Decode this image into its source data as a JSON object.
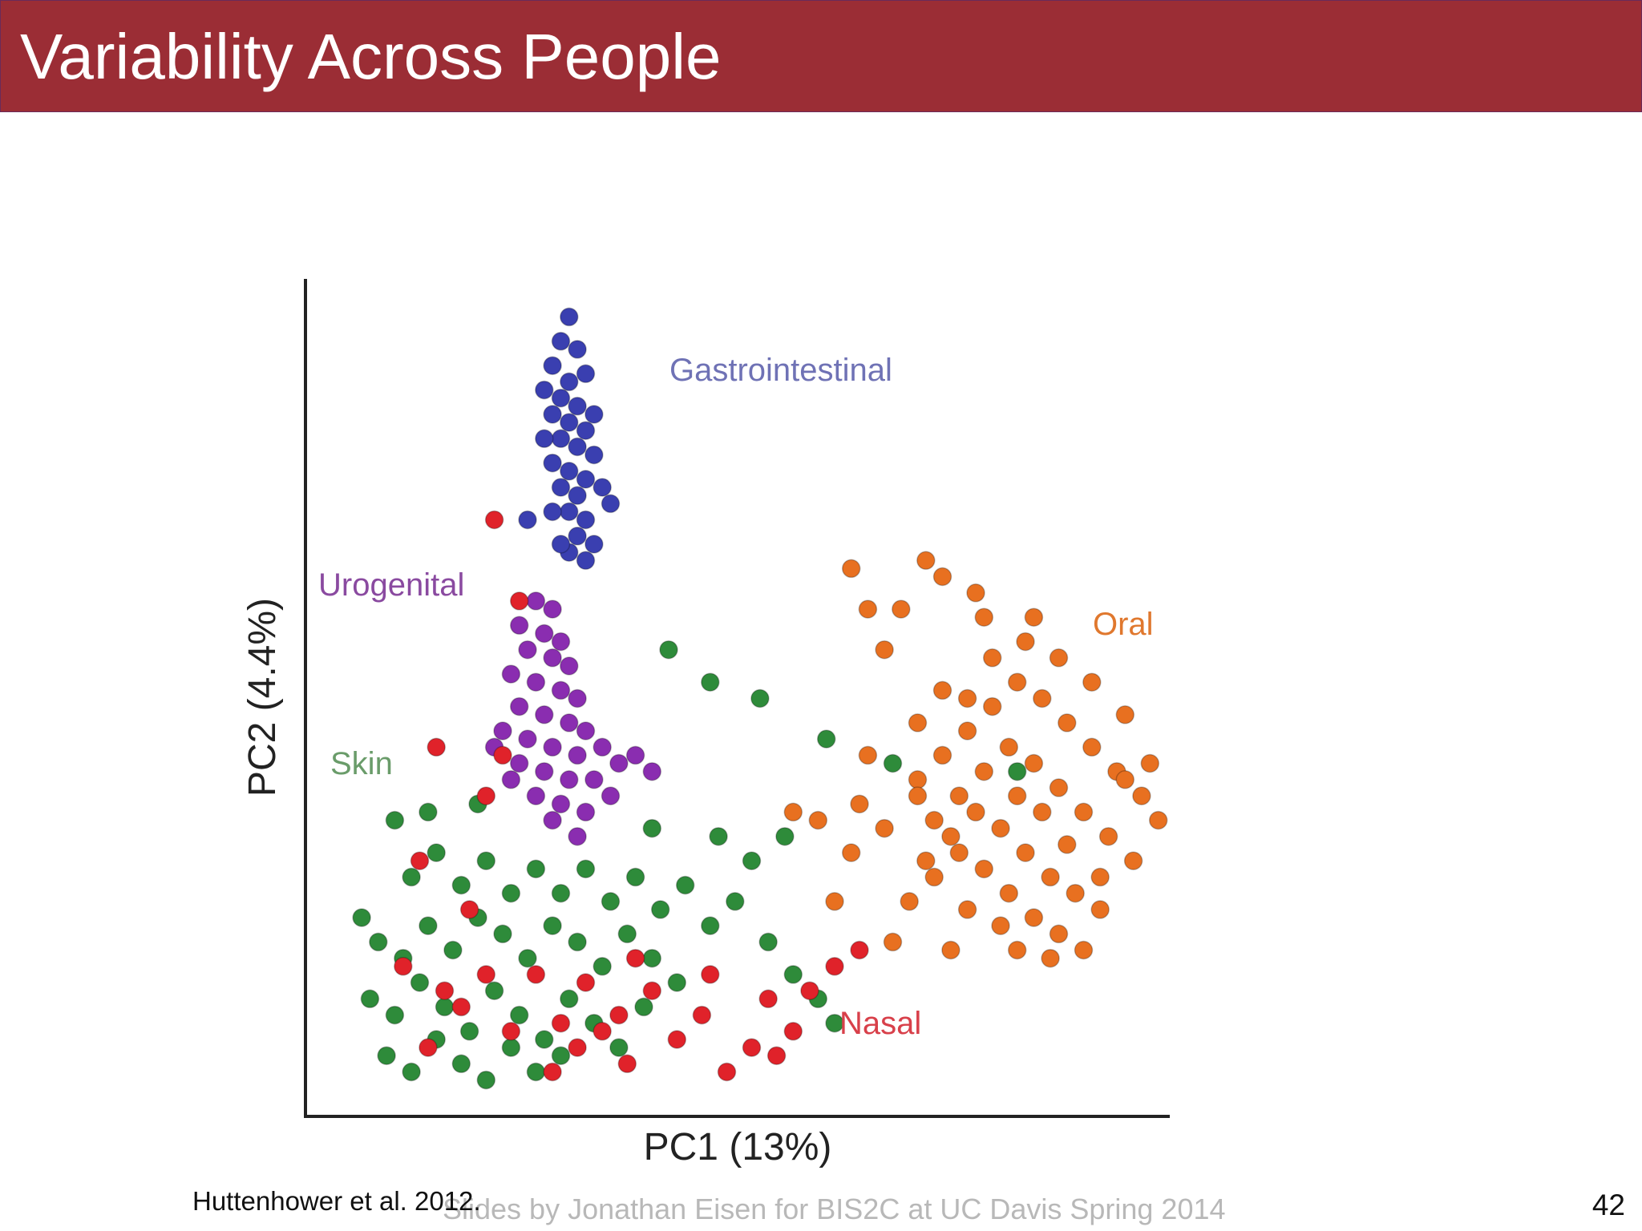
{
  "slide": {
    "title": "Variability Across People",
    "citation": "Huttenhower et al. 2012.",
    "credit": "Slides by Jonathan Eisen for BIS2C at UC Davis Spring 2014",
    "page_number": "42",
    "accent_color": "#9b2d35"
  },
  "chart_data": {
    "type": "scatter",
    "xlabel": "PC1 (13%)",
    "ylabel": "PC2 (4.4%)",
    "grid": false,
    "legend": "labels placed beside clusters",
    "series": [
      {
        "name": "Gastrointestinal",
        "color": "#3a3fb0",
        "points": [
          [
            0.28,
            0.97
          ],
          [
            0.27,
            0.94
          ],
          [
            0.29,
            0.93
          ],
          [
            0.26,
            0.91
          ],
          [
            0.3,
            0.9
          ],
          [
            0.28,
            0.89
          ],
          [
            0.25,
            0.88
          ],
          [
            0.27,
            0.87
          ],
          [
            0.29,
            0.86
          ],
          [
            0.31,
            0.85
          ],
          [
            0.26,
            0.85
          ],
          [
            0.28,
            0.84
          ],
          [
            0.3,
            0.83
          ],
          [
            0.27,
            0.82
          ],
          [
            0.25,
            0.82
          ],
          [
            0.29,
            0.81
          ],
          [
            0.31,
            0.8
          ],
          [
            0.26,
            0.79
          ],
          [
            0.28,
            0.78
          ],
          [
            0.3,
            0.77
          ],
          [
            0.27,
            0.76
          ],
          [
            0.29,
            0.75
          ],
          [
            0.32,
            0.76
          ],
          [
            0.28,
            0.73
          ],
          [
            0.3,
            0.72
          ],
          [
            0.26,
            0.73
          ],
          [
            0.33,
            0.74
          ],
          [
            0.29,
            0.7
          ],
          [
            0.31,
            0.69
          ],
          [
            0.23,
            0.72
          ],
          [
            0.28,
            0.68
          ],
          [
            0.3,
            0.67
          ],
          [
            0.27,
            0.69
          ]
        ]
      },
      {
        "name": "Urogenital",
        "color": "#8a2db0",
        "points": [
          [
            0.24,
            0.62
          ],
          [
            0.26,
            0.61
          ],
          [
            0.22,
            0.59
          ],
          [
            0.25,
            0.58
          ],
          [
            0.27,
            0.57
          ],
          [
            0.23,
            0.56
          ],
          [
            0.26,
            0.55
          ],
          [
            0.28,
            0.54
          ],
          [
            0.21,
            0.53
          ],
          [
            0.24,
            0.52
          ],
          [
            0.27,
            0.51
          ],
          [
            0.29,
            0.5
          ],
          [
            0.22,
            0.49
          ],
          [
            0.25,
            0.48
          ],
          [
            0.28,
            0.47
          ],
          [
            0.3,
            0.46
          ],
          [
            0.2,
            0.46
          ],
          [
            0.23,
            0.45
          ],
          [
            0.26,
            0.44
          ],
          [
            0.29,
            0.43
          ],
          [
            0.32,
            0.44
          ],
          [
            0.34,
            0.42
          ],
          [
            0.22,
            0.42
          ],
          [
            0.25,
            0.41
          ],
          [
            0.28,
            0.4
          ],
          [
            0.31,
            0.4
          ],
          [
            0.36,
            0.43
          ],
          [
            0.24,
            0.38
          ],
          [
            0.27,
            0.37
          ],
          [
            0.3,
            0.36
          ],
          [
            0.19,
            0.44
          ],
          [
            0.38,
            0.41
          ],
          [
            0.33,
            0.38
          ],
          [
            0.26,
            0.35
          ],
          [
            0.21,
            0.4
          ],
          [
            0.29,
            0.33
          ]
        ]
      },
      {
        "name": "Skin",
        "color": "#2e8b3a",
        "points": [
          [
            0.05,
            0.2
          ],
          [
            0.08,
            0.18
          ],
          [
            0.11,
            0.22
          ],
          [
            0.14,
            0.19
          ],
          [
            0.17,
            0.23
          ],
          [
            0.2,
            0.21
          ],
          [
            0.23,
            0.18
          ],
          [
            0.26,
            0.22
          ],
          [
            0.29,
            0.2
          ],
          [
            0.32,
            0.17
          ],
          [
            0.35,
            0.21
          ],
          [
            0.38,
            0.18
          ],
          [
            0.41,
            0.15
          ],
          [
            0.04,
            0.13
          ],
          [
            0.07,
            0.11
          ],
          [
            0.1,
            0.15
          ],
          [
            0.13,
            0.12
          ],
          [
            0.16,
            0.09
          ],
          [
            0.19,
            0.14
          ],
          [
            0.22,
            0.11
          ],
          [
            0.25,
            0.08
          ],
          [
            0.28,
            0.13
          ],
          [
            0.31,
            0.1
          ],
          [
            0.34,
            0.07
          ],
          [
            0.37,
            0.12
          ],
          [
            0.06,
            0.06
          ],
          [
            0.09,
            0.04
          ],
          [
            0.12,
            0.08
          ],
          [
            0.15,
            0.05
          ],
          [
            0.18,
            0.03
          ],
          [
            0.21,
            0.07
          ],
          [
            0.24,
            0.04
          ],
          [
            0.27,
            0.06
          ],
          [
            0.09,
            0.28
          ],
          [
            0.12,
            0.31
          ],
          [
            0.15,
            0.27
          ],
          [
            0.18,
            0.3
          ],
          [
            0.21,
            0.26
          ],
          [
            0.24,
            0.29
          ],
          [
            0.27,
            0.26
          ],
          [
            0.3,
            0.29
          ],
          [
            0.33,
            0.25
          ],
          [
            0.36,
            0.28
          ],
          [
            0.39,
            0.24
          ],
          [
            0.42,
            0.27
          ],
          [
            0.45,
            0.22
          ],
          [
            0.48,
            0.25
          ],
          [
            0.52,
            0.2
          ],
          [
            0.55,
            0.16
          ],
          [
            0.58,
            0.13
          ],
          [
            0.6,
            0.1
          ],
          [
            0.07,
            0.35
          ],
          [
            0.11,
            0.36
          ],
          [
            0.17,
            0.37
          ],
          [
            0.38,
            0.34
          ],
          [
            0.46,
            0.33
          ],
          [
            0.59,
            0.45
          ],
          [
            0.67,
            0.42
          ],
          [
            0.82,
            0.41
          ],
          [
            0.4,
            0.56
          ],
          [
            0.45,
            0.52
          ],
          [
            0.51,
            0.5
          ],
          [
            0.03,
            0.23
          ],
          [
            0.5,
            0.3
          ],
          [
            0.54,
            0.33
          ]
        ]
      },
      {
        "name": "Oral",
        "color": "#e87020",
        "points": [
          [
            0.7,
            0.4
          ],
          [
            0.73,
            0.43
          ],
          [
            0.76,
            0.46
          ],
          [
            0.79,
            0.49
          ],
          [
            0.82,
            0.52
          ],
          [
            0.85,
            0.5
          ],
          [
            0.88,
            0.47
          ],
          [
            0.91,
            0.44
          ],
          [
            0.94,
            0.41
          ],
          [
            0.97,
            0.38
          ],
          [
            0.72,
            0.35
          ],
          [
            0.75,
            0.38
          ],
          [
            0.78,
            0.41
          ],
          [
            0.81,
            0.44
          ],
          [
            0.84,
            0.42
          ],
          [
            0.87,
            0.39
          ],
          [
            0.9,
            0.36
          ],
          [
            0.93,
            0.33
          ],
          [
            0.96,
            0.3
          ],
          [
            0.71,
            0.3
          ],
          [
            0.74,
            0.33
          ],
          [
            0.77,
            0.36
          ],
          [
            0.8,
            0.34
          ],
          [
            0.83,
            0.31
          ],
          [
            0.86,
            0.28
          ],
          [
            0.89,
            0.26
          ],
          [
            0.92,
            0.24
          ],
          [
            0.69,
            0.25
          ],
          [
            0.72,
            0.28
          ],
          [
            0.75,
            0.31
          ],
          [
            0.78,
            0.29
          ],
          [
            0.81,
            0.26
          ],
          [
            0.84,
            0.23
          ],
          [
            0.87,
            0.21
          ],
          [
            0.9,
            0.19
          ],
          [
            0.66,
            0.34
          ],
          [
            0.62,
            0.31
          ],
          [
            0.58,
            0.35
          ],
          [
            0.55,
            0.36
          ],
          [
            0.63,
            0.37
          ],
          [
            0.79,
            0.55
          ],
          [
            0.83,
            0.57
          ],
          [
            0.87,
            0.55
          ],
          [
            0.91,
            0.52
          ],
          [
            0.95,
            0.48
          ],
          [
            0.98,
            0.42
          ],
          [
            0.99,
            0.35
          ],
          [
            0.7,
            0.47
          ],
          [
            0.66,
            0.56
          ],
          [
            0.64,
            0.61
          ],
          [
            0.68,
            0.61
          ],
          [
            0.62,
            0.66
          ],
          [
            0.73,
            0.65
          ],
          [
            0.77,
            0.63
          ],
          [
            0.71,
            0.67
          ],
          [
            0.84,
            0.6
          ],
          [
            0.78,
            0.6
          ],
          [
            0.64,
            0.43
          ],
          [
            0.6,
            0.25
          ],
          [
            0.67,
            0.2
          ],
          [
            0.74,
            0.19
          ],
          [
            0.82,
            0.19
          ],
          [
            0.86,
            0.18
          ],
          [
            0.8,
            0.22
          ],
          [
            0.76,
            0.24
          ],
          [
            0.85,
            0.36
          ],
          [
            0.88,
            0.32
          ],
          [
            0.82,
            0.38
          ],
          [
            0.76,
            0.5
          ],
          [
            0.92,
            0.28
          ],
          [
            0.95,
            0.4
          ],
          [
            0.7,
            0.38
          ],
          [
            0.73,
            0.51
          ]
        ]
      },
      {
        "name": "Nasal",
        "color": "#e0222a",
        "points": [
          [
            0.19,
            0.72
          ],
          [
            0.22,
            0.62
          ],
          [
            0.12,
            0.44
          ],
          [
            0.2,
            0.43
          ],
          [
            0.18,
            0.38
          ],
          [
            0.1,
            0.3
          ],
          [
            0.16,
            0.24
          ],
          [
            0.08,
            0.17
          ],
          [
            0.13,
            0.14
          ],
          [
            0.18,
            0.16
          ],
          [
            0.21,
            0.09
          ],
          [
            0.24,
            0.16
          ],
          [
            0.27,
            0.1
          ],
          [
            0.3,
            0.15
          ],
          [
            0.26,
            0.04
          ],
          [
            0.32,
            0.09
          ],
          [
            0.35,
            0.05
          ],
          [
            0.38,
            0.14
          ],
          [
            0.41,
            0.08
          ],
          [
            0.44,
            0.11
          ],
          [
            0.47,
            0.04
          ],
          [
            0.5,
            0.07
          ],
          [
            0.52,
            0.13
          ],
          [
            0.55,
            0.09
          ],
          [
            0.57,
            0.14
          ],
          [
            0.6,
            0.17
          ],
          [
            0.63,
            0.19
          ],
          [
            0.53,
            0.06
          ],
          [
            0.11,
            0.07
          ],
          [
            0.15,
            0.12
          ],
          [
            0.29,
            0.07
          ],
          [
            0.36,
            0.18
          ],
          [
            0.45,
            0.16
          ],
          [
            0.34,
            0.11
          ]
        ]
      }
    ],
    "labels": [
      {
        "text": "Gastrointestinal",
        "color": "#6f72b5"
      },
      {
        "text": "Urogenital",
        "color": "#8a4aa0"
      },
      {
        "text": "Skin",
        "color": "#6a9c6a"
      },
      {
        "text": "Oral",
        "color": "#e0782e"
      },
      {
        "text": "Nasal",
        "color": "#d8404a"
      }
    ]
  }
}
